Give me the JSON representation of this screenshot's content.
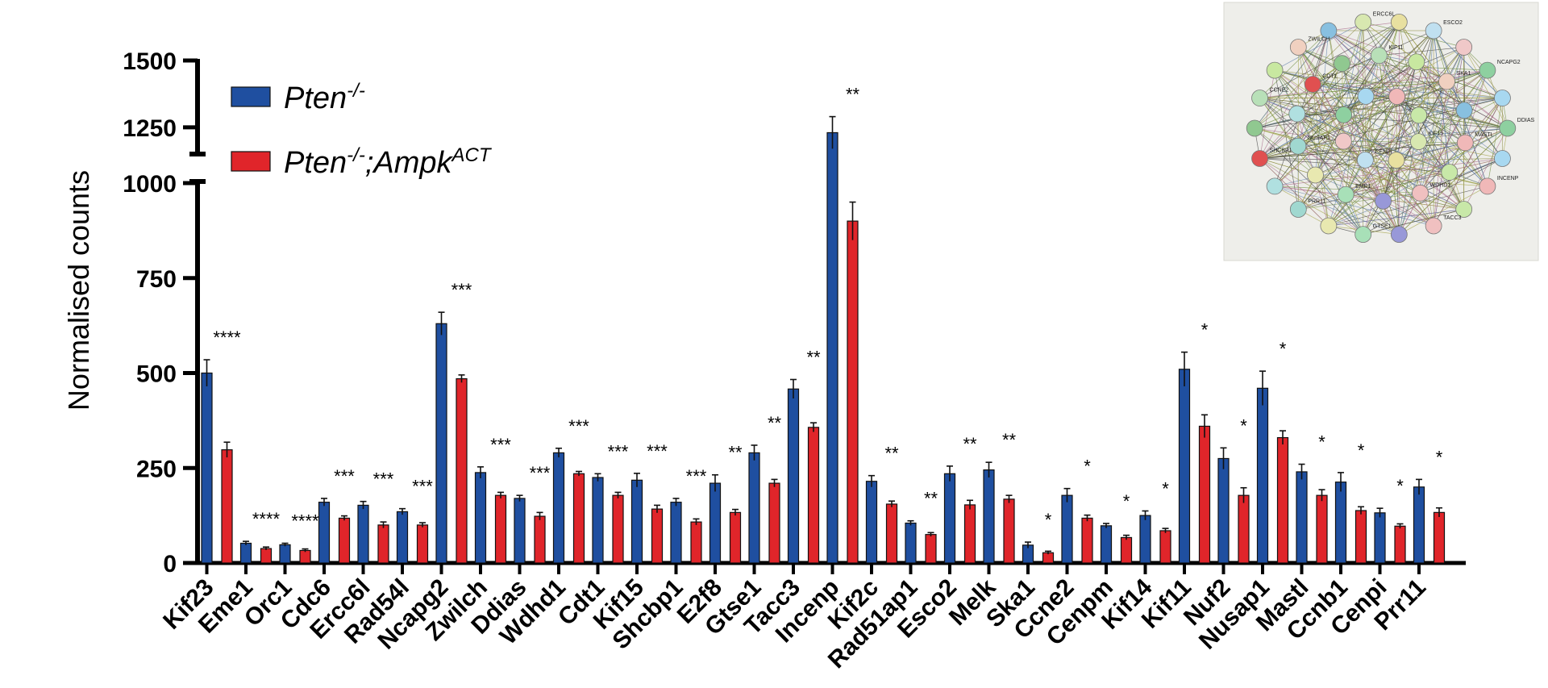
{
  "chart_data": {
    "type": "bar",
    "ylabel": "Normalised counts",
    "y_axis_broken": true,
    "y_break": [
      1000,
      1150
    ],
    "ylim": [
      0,
      1500
    ],
    "yticks_lower": [
      0,
      250,
      500,
      750,
      1000
    ],
    "yticks_upper": [
      1250,
      1500
    ],
    "legend_position": "top-left",
    "categories": [
      "Kif23",
      "Eme1",
      "Orc1",
      "Cdc6",
      "Ercc6l",
      "Rad54l",
      "Ncapg2",
      "Zwilch",
      "Ddias",
      "Wdhd1",
      "Cdt1",
      "Kif15",
      "Shcbp1",
      "E2f8",
      "Gtse1",
      "Tacc3",
      "Incenp",
      "Kif2c",
      "Rad51ap1",
      "Esco2",
      "Melk",
      "Ska1",
      "Ccne2",
      "Cenpm",
      "Kif14",
      "Kif11",
      "Nuf2",
      "Nusap1",
      "Mastl",
      "Ccnb1",
      "Cenpi",
      "Prr11"
    ],
    "series": [
      {
        "base": "Pten",
        "sup": "-/-",
        "color": "#1f4fa0",
        "values": [
          500,
          52,
          48,
          160,
          152,
          135,
          630,
          238,
          170,
          290,
          225,
          218,
          160,
          210,
          290,
          458,
          1230,
          215,
          105,
          235,
          245,
          47,
          178,
          98,
          125,
          510,
          275,
          460,
          240,
          213,
          132,
          200
        ],
        "errors": [
          35,
          5,
          4,
          10,
          10,
          8,
          30,
          15,
          8,
          12,
          10,
          18,
          10,
          22,
          20,
          25,
          60,
          15,
          6,
          20,
          20,
          8,
          18,
          6,
          12,
          45,
          28,
          45,
          20,
          25,
          12,
          20
        ]
      },
      {
        "base": "Pten",
        "sup": "-/-",
        "base2": ";Ampk",
        "sup2": "ACT",
        "color": "#e0252a",
        "values": [
          298,
          38,
          33,
          118,
          100,
          100,
          485,
          178,
          123,
          235,
          178,
          142,
          108,
          133,
          210,
          357,
          900,
          155,
          75,
          153,
          168,
          27,
          118,
          67,
          85,
          360,
          178,
          330,
          178,
          138,
          97,
          133
        ],
        "errors": [
          20,
          4,
          4,
          6,
          8,
          6,
          10,
          8,
          10,
          6,
          8,
          10,
          8,
          8,
          10,
          12,
          50,
          8,
          5,
          12,
          10,
          4,
          8,
          6,
          6,
          30,
          20,
          18,
          15,
          10,
          6,
          12
        ]
      }
    ],
    "significance": [
      "****",
      "****",
      "****",
      "***",
      "***",
      "***",
      "***",
      "***",
      "***",
      "***",
      "***",
      "***",
      "***",
      "**",
      "**",
      "**",
      "**",
      "**",
      "**",
      "**",
      "**",
      "*",
      "*",
      "*",
      "*",
      "*",
      "*",
      "*",
      "*",
      "*",
      "*",
      "*"
    ]
  },
  "inset_network": {
    "node_labels": [
      "DDIAS",
      "INCENP",
      "TACC3",
      "GTSE1",
      "PRR11",
      "SHCBP1",
      "CCNE2",
      "ZWILCH",
      "ERCC6L",
      "ESCO2",
      "NCAPG2",
      "MASTL",
      "WDHD1",
      "EME1",
      "NUSAP1",
      "CDT1",
      "KIF11",
      "SKA1",
      "KIF15",
      "CENPI"
    ],
    "node_colors": [
      "#8ed0a0",
      "#a8d8f0",
      "#f0b8b8",
      "#c8e8a8",
      "#f0c0c0",
      "#9898d8",
      "#a8e0b8",
      "#e8e8b0",
      "#a0d8d0",
      "#b0e0e0",
      "#e05050",
      "#90c890",
      "#b8e0b8",
      "#c8e8a0",
      "#f0d0c0",
      "#88c0e0",
      "#d8e8b0",
      "#e8e0a0",
      "#c0e0f0",
      "#f0c8c8"
    ]
  }
}
